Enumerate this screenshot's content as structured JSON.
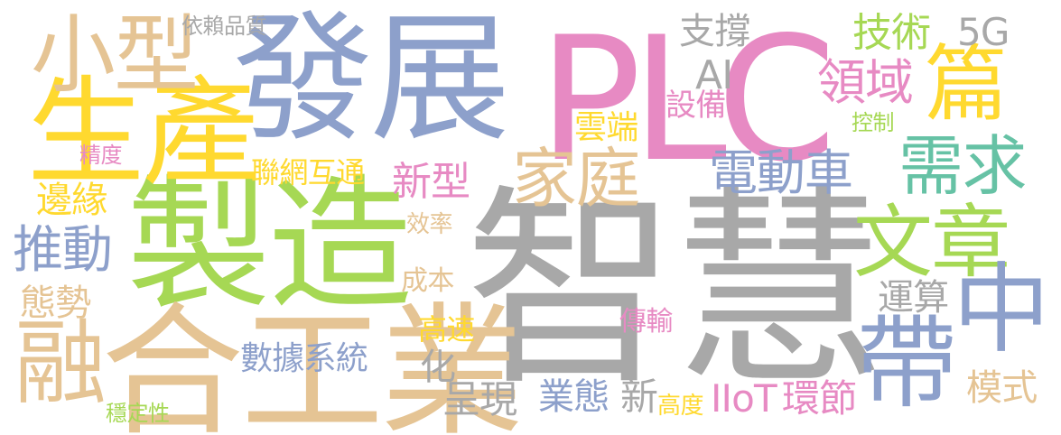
{
  "words": [
    {
      "text": "智慧",
      "color": "#a8a8a8"
    },
    {
      "text": "PLC",
      "color": "#e78ac3"
    },
    {
      "text": "製造",
      "color": "#a6d854"
    },
    {
      "text": "發展",
      "color": "#8da0cb"
    },
    {
      "text": "合工業",
      "color": "#e5c494"
    },
    {
      "text": "生產",
      "color": "#ffd92f"
    },
    {
      "text": "文章",
      "color": "#a6d854"
    },
    {
      "text": "小型",
      "color": "#e5c494"
    },
    {
      "text": "需求",
      "color": "#66c2a5"
    },
    {
      "text": "篇",
      "color": "#ffd92f"
    },
    {
      "text": "家庭",
      "color": "#e5c494"
    },
    {
      "text": "中",
      "color": "#8da0cb"
    },
    {
      "text": "帶",
      "color": "#8da0cb"
    },
    {
      "text": "融",
      "color": "#e5c494"
    },
    {
      "text": "電動車",
      "color": "#8da0cb"
    },
    {
      "text": "領域",
      "color": "#e78ac3"
    },
    {
      "text": "推動",
      "color": "#8da0cb"
    },
    {
      "text": "新型",
      "color": "#e78ac3"
    },
    {
      "text": "邊緣",
      "color": "#ffd92f"
    },
    {
      "text": "技術",
      "color": "#a6d854"
    },
    {
      "text": "支撐",
      "color": "#a8a8a8"
    },
    {
      "text": "5G",
      "color": "#a8a8a8"
    },
    {
      "text": "雲端",
      "color": "#ffd92f"
    },
    {
      "text": "設備",
      "color": "#e78ac3"
    },
    {
      "text": "AI",
      "color": "#a8a8a8"
    },
    {
      "text": "聯網互通",
      "color": "#ffd92f"
    },
    {
      "text": "態勢",
      "color": "#e5c494"
    },
    {
      "text": "運算",
      "color": "#a8a8a8"
    },
    {
      "text": "業態",
      "color": "#8da0cb"
    },
    {
      "text": "呈現",
      "color": "#a8a8a8"
    },
    {
      "text": "新",
      "color": "#a8a8a8"
    },
    {
      "text": "IIoT",
      "color": "#e78ac3"
    },
    {
      "text": "環節",
      "color": "#e78ac3"
    },
    {
      "text": "模式",
      "color": "#e5c494"
    },
    {
      "text": "數據系統",
      "color": "#8da0cb"
    },
    {
      "text": "高速",
      "color": "#ffd92f"
    },
    {
      "text": "成本",
      "color": "#e5c494"
    },
    {
      "text": "化",
      "color": "#a8a8a8"
    },
    {
      "text": "傳輸",
      "color": "#e78ac3"
    },
    {
      "text": "高度",
      "color": "#ffd92f"
    },
    {
      "text": "效率",
      "color": "#e5c494"
    },
    {
      "text": "依賴品質",
      "color": "#a8a8a8"
    },
    {
      "text": "精度",
      "color": "#e78ac3"
    },
    {
      "text": "控制",
      "color": "#a6d854"
    },
    {
      "text": "穩定性",
      "color": "#a6d854"
    }
  ]
}
